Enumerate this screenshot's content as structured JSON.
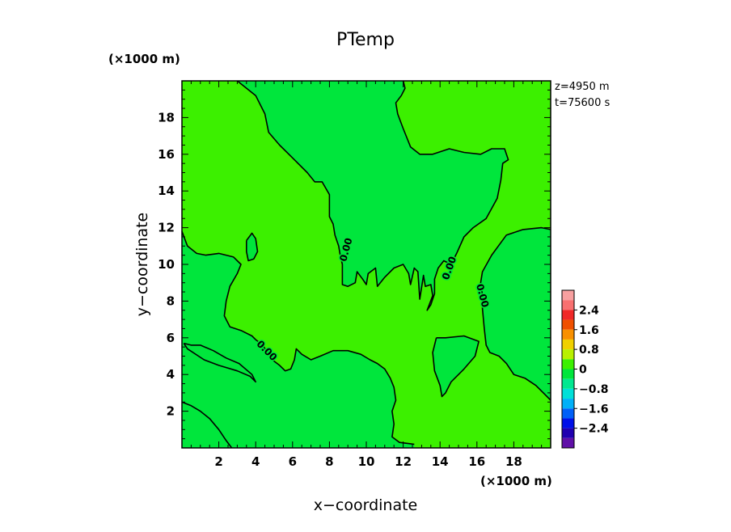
{
  "chart_data": {
    "type": "heatmap",
    "title": "PTemp",
    "xlabel": "x−coordinate",
    "ylabel": "y−coordinate",
    "x_unit": "(×1000 m)",
    "y_unit": "(×1000 m)",
    "xlim": [
      0,
      20
    ],
    "ylim": [
      0,
      20
    ],
    "x_ticks": [
      2,
      4,
      6,
      8,
      10,
      12,
      14,
      16,
      18
    ],
    "y_ticks": [
      2,
      4,
      6,
      8,
      10,
      12,
      14,
      16,
      18
    ],
    "info": [
      "z=4950  m",
      "t=75600  s"
    ],
    "field_colors": {
      "positive": "#3cf000",
      "negative": "#00e63c"
    },
    "contour_level": 0.0,
    "contour_label": "0.00",
    "contours": [
      {
        "name": "north-tongue",
        "points": [
          [
            3.0,
            20
          ],
          [
            4.0,
            19.2
          ],
          [
            4.5,
            18.2
          ],
          [
            4.7,
            17.2
          ],
          [
            5.3,
            16.5
          ],
          [
            6.0,
            15.8
          ],
          [
            6.8,
            15.0
          ],
          [
            7.2,
            14.5
          ],
          [
            7.6,
            14.5
          ],
          [
            8.0,
            13.8
          ],
          [
            8.0,
            12.6
          ],
          [
            8.2,
            12.2
          ],
          [
            8.3,
            11.6
          ],
          [
            8.5,
            11.0
          ],
          [
            8.6,
            10.4
          ],
          [
            8.7,
            10.0
          ],
          [
            8.7,
            9.3
          ],
          [
            8.7,
            8.9
          ],
          [
            9.0,
            8.8
          ],
          [
            9.4,
            9.0
          ],
          [
            9.5,
            9.6
          ],
          [
            9.8,
            9.2
          ],
          [
            10.0,
            8.9
          ],
          [
            10.1,
            9.5
          ],
          [
            10.5,
            9.8
          ],
          [
            10.6,
            8.8
          ],
          [
            11.0,
            9.3
          ],
          [
            11.5,
            9.8
          ],
          [
            12.0,
            10.0
          ],
          [
            12.3,
            9.5
          ],
          [
            12.4,
            8.9
          ],
          [
            12.6,
            9.8
          ],
          [
            12.8,
            9.6
          ],
          [
            12.9,
            8.1
          ],
          [
            13.1,
            9.4
          ],
          [
            13.2,
            8.8
          ],
          [
            13.5,
            8.9
          ],
          [
            13.6,
            8.3
          ],
          [
            13.3,
            7.5
          ],
          [
            13.5,
            7.8
          ],
          [
            13.7,
            8.4
          ],
          [
            13.7,
            9.2
          ],
          [
            13.9,
            9.8
          ],
          [
            14.2,
            10.2
          ],
          [
            14.6,
            10.0
          ],
          [
            14.9,
            10.6
          ],
          [
            15.3,
            11.5
          ],
          [
            15.8,
            12.0
          ],
          [
            16.5,
            12.5
          ],
          [
            17.1,
            13.6
          ],
          [
            17.3,
            14.6
          ],
          [
            17.4,
            15.5
          ],
          [
            17.7,
            15.7
          ],
          [
            17.5,
            16.3
          ],
          [
            16.8,
            16.3
          ],
          [
            16.2,
            16.0
          ],
          [
            15.3,
            16.1
          ],
          [
            14.5,
            16.3
          ],
          [
            13.6,
            16.0
          ],
          [
            12.9,
            16.0
          ],
          [
            12.4,
            16.4
          ],
          [
            12.0,
            17.4
          ],
          [
            11.7,
            18.2
          ],
          [
            11.6,
            18.8
          ],
          [
            11.9,
            19.2
          ],
          [
            12.1,
            19.6
          ],
          [
            12.0,
            20
          ]
        ]
      },
      {
        "name": "west-lobe",
        "points": [
          [
            0,
            11.8
          ],
          [
            0.3,
            11.0
          ],
          [
            0.8,
            10.6
          ],
          [
            1.3,
            10.5
          ],
          [
            2.0,
            10.6
          ],
          [
            2.8,
            10.4
          ],
          [
            3.2,
            10.0
          ],
          [
            3.0,
            9.5
          ],
          [
            2.6,
            8.8
          ],
          [
            2.4,
            8.0
          ],
          [
            2.3,
            7.2
          ],
          [
            2.6,
            6.6
          ],
          [
            3.2,
            6.4
          ],
          [
            3.8,
            6.1
          ],
          [
            4.0,
            5.9
          ],
          [
            4.4,
            5.6
          ],
          [
            4.6,
            5.2
          ],
          [
            4.9,
            4.8
          ],
          [
            5.3,
            4.5
          ],
          [
            5.6,
            4.2
          ],
          [
            5.9,
            4.3
          ],
          [
            6.1,
            4.8
          ],
          [
            6.2,
            5.4
          ],
          [
            6.5,
            5.1
          ],
          [
            7.0,
            4.8
          ],
          [
            7.5,
            5.0
          ],
          [
            8.2,
            5.3
          ],
          [
            9.0,
            5.3
          ],
          [
            9.7,
            5.1
          ],
          [
            10.2,
            4.8
          ],
          [
            10.6,
            4.6
          ],
          [
            11.0,
            4.3
          ],
          [
            11.3,
            3.8
          ],
          [
            11.5,
            3.3
          ],
          [
            11.6,
            2.6
          ],
          [
            11.4,
            2.0
          ],
          [
            11.5,
            1.3
          ],
          [
            11.4,
            0.6
          ],
          [
            11.8,
            0.3
          ],
          [
            12.6,
            0.2
          ]
        ]
      },
      {
        "name": "southwest-corner",
        "points": [
          [
            0,
            2.5
          ],
          [
            0.5,
            2.3
          ],
          [
            1.0,
            2.0
          ],
          [
            1.5,
            1.6
          ],
          [
            2.0,
            1.0
          ],
          [
            2.4,
            0.4
          ],
          [
            2.7,
            0
          ]
        ]
      },
      {
        "name": "west-isle",
        "points": [
          [
            0.1,
            5.7
          ],
          [
            0.5,
            5.6
          ],
          [
            1.0,
            5.6
          ],
          [
            1.7,
            5.3
          ],
          [
            2.4,
            4.9
          ],
          [
            3.1,
            4.6
          ],
          [
            3.8,
            4.0
          ],
          [
            4.0,
            3.6
          ],
          [
            3.7,
            3.9
          ],
          [
            3.0,
            4.2
          ],
          [
            2.0,
            4.5
          ],
          [
            1.2,
            4.8
          ],
          [
            0.3,
            5.4
          ],
          [
            0.1,
            5.7
          ]
        ]
      },
      {
        "name": "center-isle",
        "points": [
          [
            3.5,
            11.3
          ],
          [
            3.5,
            10.7
          ],
          [
            3.6,
            10.2
          ],
          [
            3.9,
            10.3
          ],
          [
            4.1,
            10.7
          ],
          [
            4.0,
            11.4
          ],
          [
            3.8,
            11.7
          ],
          [
            3.5,
            11.3
          ]
        ]
      },
      {
        "name": "east-isle",
        "points": [
          [
            13.8,
            6.0
          ],
          [
            14.3,
            6.0
          ],
          [
            15.3,
            6.1
          ],
          [
            16.1,
            5.8
          ],
          [
            15.9,
            5.0
          ],
          [
            15.3,
            4.3
          ],
          [
            14.6,
            3.6
          ],
          [
            14.3,
            3.0
          ],
          [
            14.1,
            2.8
          ],
          [
            14.0,
            3.4
          ],
          [
            13.7,
            4.2
          ],
          [
            13.6,
            5.2
          ],
          [
            13.8,
            6.0
          ]
        ]
      },
      {
        "name": "east-ridge",
        "points": [
          [
            20,
            11.9
          ],
          [
            19.5,
            12.0
          ],
          [
            18.5,
            11.9
          ],
          [
            17.6,
            11.6
          ],
          [
            16.8,
            10.5
          ],
          [
            16.3,
            9.6
          ],
          [
            16.2,
            9.0
          ],
          [
            16.3,
            8.3
          ],
          [
            16.3,
            7.6
          ],
          [
            16.4,
            6.5
          ],
          [
            16.5,
            5.6
          ],
          [
            16.7,
            5.2
          ],
          [
            17.2,
            5.0
          ],
          [
            17.6,
            4.6
          ],
          [
            18.0,
            4.0
          ],
          [
            18.6,
            3.8
          ],
          [
            19.2,
            3.4
          ],
          [
            19.7,
            2.9
          ],
          [
            20,
            2.6
          ]
        ]
      }
    ],
    "contour_labels": [
      {
        "text": "0.00",
        "x": 8.9,
        "y": 10.8,
        "angle": -75
      },
      {
        "text": "0.00",
        "x": 14.5,
        "y": 9.8,
        "angle": -70
      },
      {
        "text": "0.00",
        "x": 16.3,
        "y": 8.3,
        "angle": 75
      },
      {
        "text": "0.00",
        "x": 4.6,
        "y": 5.3,
        "angle": 45
      }
    ],
    "colorbar": {
      "range": [
        -3.2,
        3.2
      ],
      "tick_labels": [
        "2.4",
        "1.6",
        "0.8",
        "0",
        "−0.8",
        "−1.6",
        "−2.4"
      ],
      "tick_values": [
        2.4,
        1.6,
        0.8,
        0,
        -0.8,
        -1.6,
        -2.4
      ],
      "bins": [
        {
          "from": 2.8,
          "to": 3.2,
          "color": "#f8a0a0"
        },
        {
          "from": 2.4,
          "to": 2.8,
          "color": "#f87070"
        },
        {
          "from": 2.0,
          "to": 2.4,
          "color": "#f02828"
        },
        {
          "from": 1.6,
          "to": 2.0,
          "color": "#f05000"
        },
        {
          "from": 1.2,
          "to": 1.6,
          "color": "#f89000"
        },
        {
          "from": 0.8,
          "to": 1.2,
          "color": "#f0d000"
        },
        {
          "from": 0.4,
          "to": 0.8,
          "color": "#b8f000"
        },
        {
          "from": 0.0,
          "to": 0.4,
          "color": "#3cf000"
        },
        {
          "from": -0.4,
          "to": 0.0,
          "color": "#00e63c"
        },
        {
          "from": -0.8,
          "to": -0.4,
          "color": "#00e890"
        },
        {
          "from": -1.2,
          "to": -0.8,
          "color": "#00e0d8"
        },
        {
          "from": -1.6,
          "to": -1.2,
          "color": "#00b0f8"
        },
        {
          "from": -2.0,
          "to": -1.6,
          "color": "#0060f8"
        },
        {
          "from": -2.4,
          "to": -2.0,
          "color": "#0010e8"
        },
        {
          "from": -2.8,
          "to": -2.4,
          "color": "#2000b0"
        },
        {
          "from": -3.2,
          "to": -2.8,
          "color": "#6010a8"
        }
      ]
    }
  }
}
